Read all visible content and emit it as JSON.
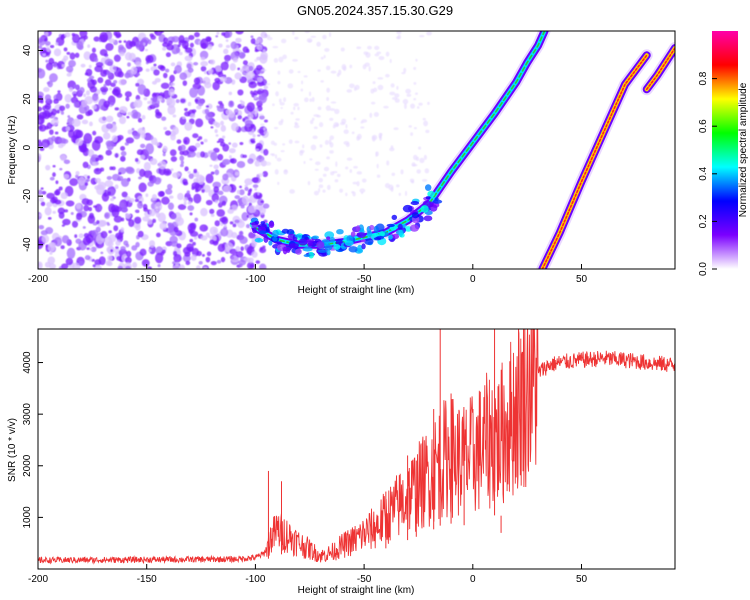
{
  "title": "GN05.2024.357.15.30.G29",
  "chart_data": [
    {
      "type": "heatmap",
      "xlabel": "Height of straight line (km)",
      "ylabel": "Frequency (Hz)",
      "xlim": [
        -200,
        93
      ],
      "ylim": [
        -50,
        48
      ],
      "xticks": [
        -200,
        -150,
        -100,
        -50,
        0,
        50
      ],
      "xtick_labels": [
        "-200",
        "-150",
        "-100",
        "-50",
        "0",
        "50"
      ],
      "yticks": [
        -40,
        -20,
        0,
        20,
        40
      ],
      "ytick_labels": [
        "-40",
        "-20",
        "0",
        "20",
        "40"
      ],
      "colorbar": {
        "label": "Normalized spectral amplitude",
        "range": [
          0,
          1
        ],
        "ticks": [
          0.0,
          0.2,
          0.4,
          0.6,
          0.8
        ],
        "tick_labels": [
          "0.0",
          "0.2",
          "0.4",
          "0.6",
          "0.8"
        ],
        "colors": [
          "#ffffff",
          "#7b00ff",
          "#0000ff",
          "#00ffff",
          "#00ff00",
          "#ffff00",
          "#ff0000",
          "#ff00aa"
        ]
      },
      "noise_region": {
        "x_range": [
          -200,
          -95
        ],
        "y_range": [
          -50,
          48
        ],
        "level": 0.15
      },
      "series": [
        {
          "x": [
            -100,
            -90,
            -80,
            -70,
            -60,
            -50,
            -40,
            -30,
            -20,
            -10,
            0,
            10,
            20,
            25,
            30,
            33
          ],
          "y": [
            -33,
            -38,
            -40,
            -40,
            -39,
            -37,
            -35,
            -30,
            -23,
            -10,
            2,
            14,
            27,
            35,
            42,
            48
          ]
        },
        {
          "x": [
            32,
            40,
            50,
            60,
            70,
            80
          ],
          "y": [
            -50,
            -35,
            -14,
            6,
            26,
            38
          ]
        },
        {
          "x": [
            80,
            85,
            93
          ],
          "y": [
            24,
            30,
            41
          ]
        }
      ]
    },
    {
      "type": "line",
      "xlabel": "Height of straight line (km)",
      "ylabel": "SNR (10 * v/v)",
      "xlim": [
        -200,
        93
      ],
      "ylim": [
        0,
        4650
      ],
      "xticks": [
        -200,
        -150,
        -100,
        -50,
        0,
        50
      ],
      "xtick_labels": [
        "-200",
        "-150",
        "-100",
        "-50",
        "0",
        "50"
      ],
      "yticks": [
        1000,
        2000,
        3000,
        4000
      ],
      "ytick_labels": [
        "1000",
        "2000",
        "3000",
        "4000"
      ],
      "color": "#ee3333",
      "series": [
        {
          "x": [
            -200,
            -150,
            -110,
            -100,
            -96,
            -93,
            -90,
            -85,
            -80,
            -75,
            -70,
            -65,
            -60,
            -55,
            -50,
            -45,
            -40,
            -35,
            -30,
            -25,
            -20,
            -15,
            -10,
            -5,
            0,
            5,
            10,
            12,
            15,
            20,
            25,
            30,
            35,
            40,
            50,
            60,
            70,
            80,
            93
          ],
          "y": [
            170,
            180,
            190,
            220,
            300,
            600,
            750,
            650,
            500,
            380,
            250,
            320,
            450,
            550,
            680,
            800,
            1000,
            1200,
            1400,
            1600,
            1800,
            2100,
            2200,
            2100,
            2200,
            2400,
            2600,
            2500,
            2750,
            3100,
            3500,
            3800,
            3950,
            4000,
            4050,
            4080,
            4050,
            4000,
            3950
          ]
        }
      ],
      "spikes": [
        {
          "x": -94,
          "y": 1900
        },
        {
          "x": -88,
          "y": 1700
        },
        {
          "x": -40,
          "y": 1500
        },
        {
          "x": -30,
          "y": 2200
        },
        {
          "x": -26,
          "y": 2100
        },
        {
          "x": -18,
          "y": 3100
        },
        {
          "x": -15,
          "y": 4650
        },
        {
          "x": -10,
          "y": 3400
        },
        {
          "x": -4,
          "y": 2500
        },
        {
          "x": 10,
          "y": 4650
        },
        {
          "x": 13,
          "y": 700
        }
      ]
    }
  ]
}
